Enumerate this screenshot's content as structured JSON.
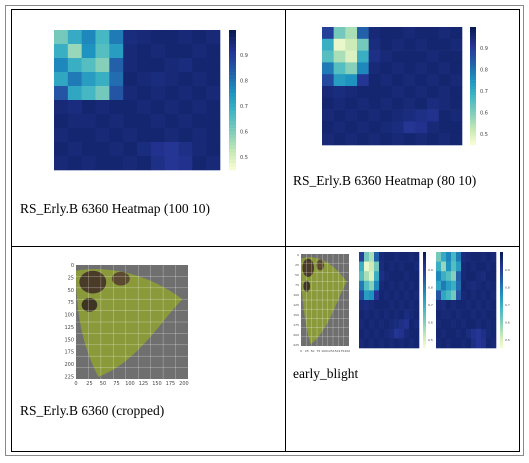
{
  "cells": [
    {
      "caption": "RS_Erly.B 6360 Heatmap (100 10)"
    },
    {
      "caption": "RS_Erly.B 6360 Heatmap (80 10)"
    },
    {
      "caption": "RS_Erly.B 6360 (cropped)"
    },
    {
      "caption": "early_blight"
    }
  ],
  "heatmap_100": {
    "rows": 10,
    "cols": 12,
    "values": [
      [
        0.62,
        0.71,
        0.78,
        0.68,
        0.8,
        0.95,
        0.96,
        0.97,
        0.97,
        0.96,
        0.97,
        0.96
      ],
      [
        0.7,
        0.58,
        0.76,
        0.66,
        0.74,
        0.96,
        0.97,
        0.96,
        0.97,
        0.97,
        0.96,
        0.97
      ],
      [
        0.78,
        0.7,
        0.66,
        0.6,
        0.84,
        0.96,
        0.97,
        0.97,
        0.96,
        0.95,
        0.97,
        0.97
      ],
      [
        0.72,
        0.8,
        0.74,
        0.7,
        0.82,
        0.97,
        0.96,
        0.95,
        0.96,
        0.97,
        0.96,
        0.97
      ],
      [
        0.86,
        0.72,
        0.68,
        0.62,
        0.86,
        0.96,
        0.97,
        0.96,
        0.97,
        0.96,
        0.97,
        0.96
      ],
      [
        0.96,
        0.95,
        0.97,
        0.96,
        0.97,
        0.97,
        0.96,
        0.97,
        0.96,
        0.97,
        0.96,
        0.97
      ],
      [
        0.97,
        0.96,
        0.96,
        0.97,
        0.96,
        0.97,
        0.97,
        0.96,
        0.97,
        0.96,
        0.97,
        0.97
      ],
      [
        0.96,
        0.97,
        0.97,
        0.96,
        0.97,
        0.96,
        0.97,
        0.97,
        0.96,
        0.97,
        0.96,
        0.97
      ],
      [
        0.97,
        0.96,
        0.97,
        0.97,
        0.96,
        0.97,
        0.95,
        0.93,
        0.92,
        0.94,
        0.96,
        0.97
      ],
      [
        0.96,
        0.97,
        0.96,
        0.97,
        0.97,
        0.96,
        0.97,
        0.94,
        0.92,
        0.93,
        0.97,
        0.96
      ]
    ],
    "colorbar_ticks": [
      "0.9",
      "0.8",
      "0.7",
      "0.6",
      "0.5"
    ],
    "vmin": 0.45,
    "vmax": 1.0
  },
  "heatmap_80": {
    "rows": 10,
    "cols": 12,
    "values": [
      [
        0.9,
        0.62,
        0.56,
        0.84,
        0.96,
        0.97,
        0.97,
        0.96,
        0.97,
        0.97,
        0.96,
        0.97
      ],
      [
        0.7,
        0.48,
        0.52,
        0.62,
        0.95,
        0.97,
        0.96,
        0.97,
        0.96,
        0.97,
        0.97,
        0.96
      ],
      [
        0.66,
        0.56,
        0.5,
        0.7,
        0.94,
        0.96,
        0.97,
        0.97,
        0.97,
        0.96,
        0.97,
        0.97
      ],
      [
        0.8,
        0.66,
        0.6,
        0.78,
        0.96,
        0.97,
        0.96,
        0.97,
        0.96,
        0.97,
        0.96,
        0.97
      ],
      [
        0.88,
        0.74,
        0.76,
        0.92,
        0.97,
        0.96,
        0.97,
        0.96,
        0.97,
        0.96,
        0.97,
        0.96
      ],
      [
        0.96,
        0.95,
        0.96,
        0.97,
        0.97,
        0.97,
        0.96,
        0.97,
        0.96,
        0.97,
        0.96,
        0.97
      ],
      [
        0.97,
        0.96,
        0.97,
        0.96,
        0.97,
        0.96,
        0.97,
        0.96,
        0.97,
        0.95,
        0.96,
        0.97
      ],
      [
        0.96,
        0.97,
        0.96,
        0.97,
        0.96,
        0.97,
        0.96,
        0.95,
        0.94,
        0.93,
        0.97,
        0.96
      ],
      [
        0.97,
        0.96,
        0.97,
        0.96,
        0.97,
        0.96,
        0.95,
        0.92,
        0.93,
        0.96,
        0.97,
        0.97
      ],
      [
        0.96,
        0.97,
        0.96,
        0.97,
        0.96,
        0.97,
        0.96,
        0.97,
        0.96,
        0.97,
        0.96,
        0.97
      ]
    ],
    "colorbar_ticks": [
      "0.9",
      "0.8",
      "0.7",
      "0.6",
      "0.5"
    ],
    "vmin": 0.45,
    "vmax": 1.0
  },
  "leaf_axes": {
    "y_ticks": [
      "0",
      "25",
      "50",
      "75",
      "100",
      "125",
      "150",
      "175",
      "200",
      "225"
    ],
    "x_ticks": [
      "0",
      "25",
      "50",
      "75",
      "100",
      "125",
      "150",
      "175",
      "200"
    ]
  },
  "colors": {
    "heat_low": "#ffffd9",
    "heat_mid": "#41b6c4",
    "heat_high": "#081d58",
    "leaf_green": "#8a9a3a",
    "leaf_bg": "#6f6f6f"
  }
}
